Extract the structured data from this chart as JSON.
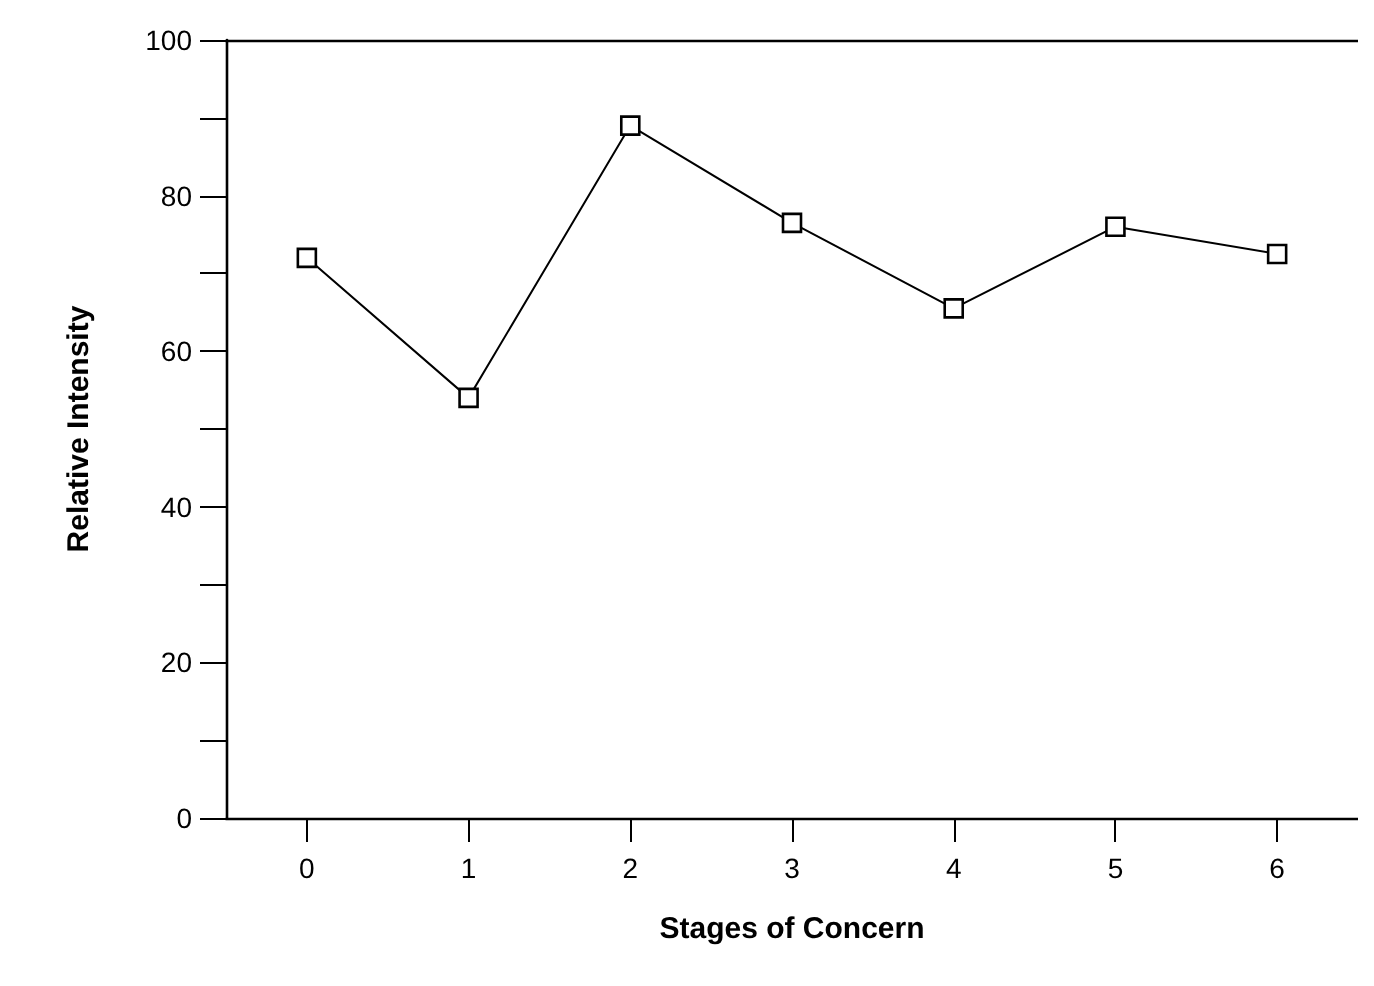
{
  "chart_data": {
    "type": "line",
    "xlabel": "Stages of Concern",
    "ylabel": "Relative Intensity",
    "x": [
      0,
      1,
      2,
      3,
      4,
      5,
      6
    ],
    "series": [
      {
        "color": "#000000",
        "values": [
          72,
          54,
          89,
          76.5,
          65.5,
          76,
          72.5
        ]
      }
    ],
    "xlim": [
      -0.5,
      6.5
    ],
    "xticks": [
      0,
      1,
      2,
      3,
      4,
      5,
      6
    ],
    "ylim": [
      0,
      100
    ],
    "yticks": [
      0,
      {
        "value": 10,
        "label": null
      },
      20,
      {
        "value": 30,
        "label": null
      },
      40,
      {
        "value": 50,
        "label": null
      },
      60,
      {
        "value": 70,
        "label": null
      },
      80,
      {
        "value": 90,
        "label": null
      },
      100
    ],
    "grid": false,
    "marker": "square",
    "line_style": "solid"
  }
}
